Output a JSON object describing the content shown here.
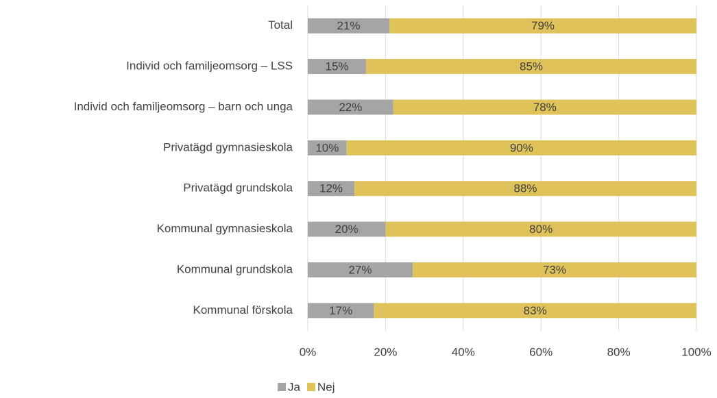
{
  "chart_data": {
    "type": "stacked-bar-horizontal",
    "categories": [
      "Total",
      "Individ och familjeomsorg – LSS",
      "Individ och familjeomsorg – barn och unga",
      "Privatägd gymnasieskola",
      "Privatägd grundskola",
      "Kommunal gymnasieskola",
      "Kommunal grundskola",
      "Kommunal förskola"
    ],
    "series": [
      {
        "name": "Ja",
        "color": "#a5a5a5",
        "values": [
          21,
          15,
          22,
          10,
          12,
          20,
          27,
          17
        ],
        "value_labels": [
          "21%",
          "15%",
          "22%",
          "10%",
          "12%",
          "20%",
          "27%",
          "17%"
        ]
      },
      {
        "name": "Nej",
        "color": "#dfc35a",
        "values": [
          79,
          85,
          78,
          90,
          88,
          80,
          73,
          83
        ],
        "value_labels": [
          "79%",
          "85%",
          "78%",
          "90%",
          "88%",
          "80%",
          "73%",
          "83%"
        ]
      }
    ],
    "xlim": [
      0,
      100
    ],
    "xticks": [
      {
        "value": 0,
        "label": "0%"
      },
      {
        "value": 20,
        "label": "20%"
      },
      {
        "value": 40,
        "label": "40%"
      },
      {
        "value": 60,
        "label": "60%"
      },
      {
        "value": 80,
        "label": "80%"
      },
      {
        "value": 100,
        "label": "100%"
      }
    ],
    "grid": true,
    "legend": "bottom"
  }
}
